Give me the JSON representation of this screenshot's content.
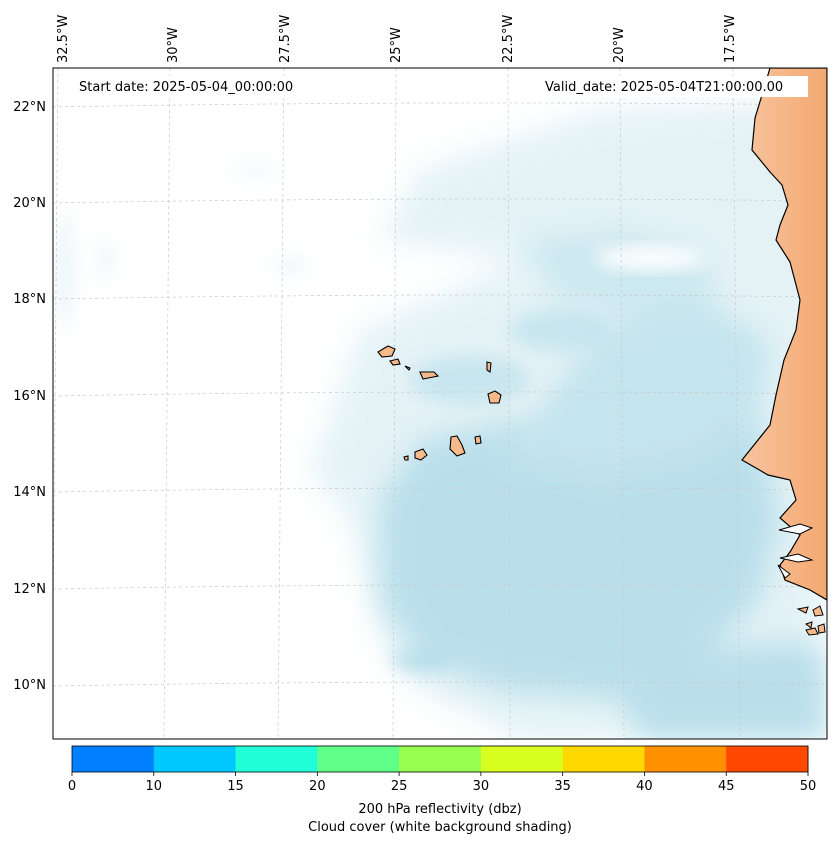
{
  "map": {
    "start_date": "Start date: 2025-05-04_00:00:00",
    "valid_date": "Valid_date: 2025-05-04T21:00:00.00",
    "lon_labels": [
      "32.5°W",
      "30°W",
      "27.5°W",
      "25°W",
      "22.5°W",
      "20°W",
      "17.5°W"
    ],
    "lat_labels": [
      "22°N",
      "20°N",
      "18°N",
      "16°N",
      "14°N",
      "12°N",
      "10°N"
    ],
    "land_color": "#f6b98c",
    "cloud_color": "#a9d8e6",
    "grid_style": "dashed light gray"
  },
  "colorbar": {
    "ticks": [
      "0",
      "10",
      "15",
      "20",
      "25",
      "30",
      "35",
      "40",
      "45",
      "50"
    ],
    "colors": [
      "#0080ff",
      "#00c8ff",
      "#20ffd8",
      "#60ff88",
      "#98ff50",
      "#d8ff20",
      "#ffd800",
      "#ff9000",
      "#ff4800"
    ],
    "label_line1": "200 hPa reflectivity (dbz)",
    "label_line2": "Cloud cover (white background shading)"
  }
}
